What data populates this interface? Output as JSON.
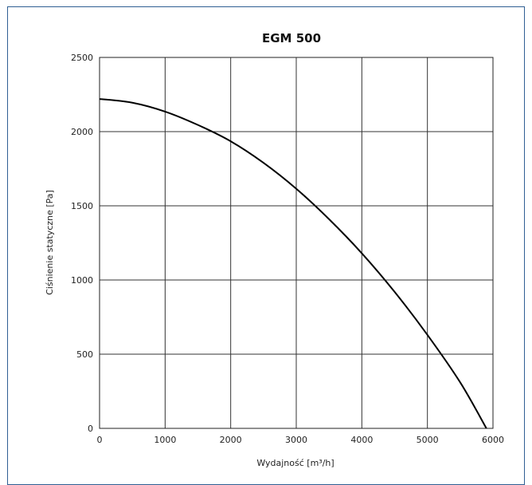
{
  "chart_data": {
    "type": "line",
    "title": "EGM 500",
    "xlabel": "Wydajność [m³/h]",
    "ylabel": "Ciśnienie statyczne [Pa]",
    "xlim": [
      0,
      6000
    ],
    "ylim": [
      0,
      2500
    ],
    "xticks": [
      0,
      1000,
      2000,
      3000,
      4000,
      5000,
      6000
    ],
    "yticks": [
      0,
      500,
      1000,
      1500,
      2000,
      2500
    ],
    "xtick_labels": [
      "0",
      "1000",
      "2000",
      "3000",
      "4000",
      "5000",
      "6000"
    ],
    "ytick_labels": [
      "0",
      "500",
      "1000",
      "1500",
      "2000",
      "2500"
    ],
    "grid": true,
    "series": [
      {
        "color": "#000000",
        "x": [
          0,
          500,
          1000,
          1500,
          2000,
          2500,
          3000,
          3500,
          4000,
          4500,
          5000,
          5500,
          5900
        ],
        "y": [
          2220,
          2195,
          2135,
          2045,
          1935,
          1790,
          1615,
          1410,
          1180,
          920,
          630,
          310,
          0
        ]
      }
    ]
  }
}
